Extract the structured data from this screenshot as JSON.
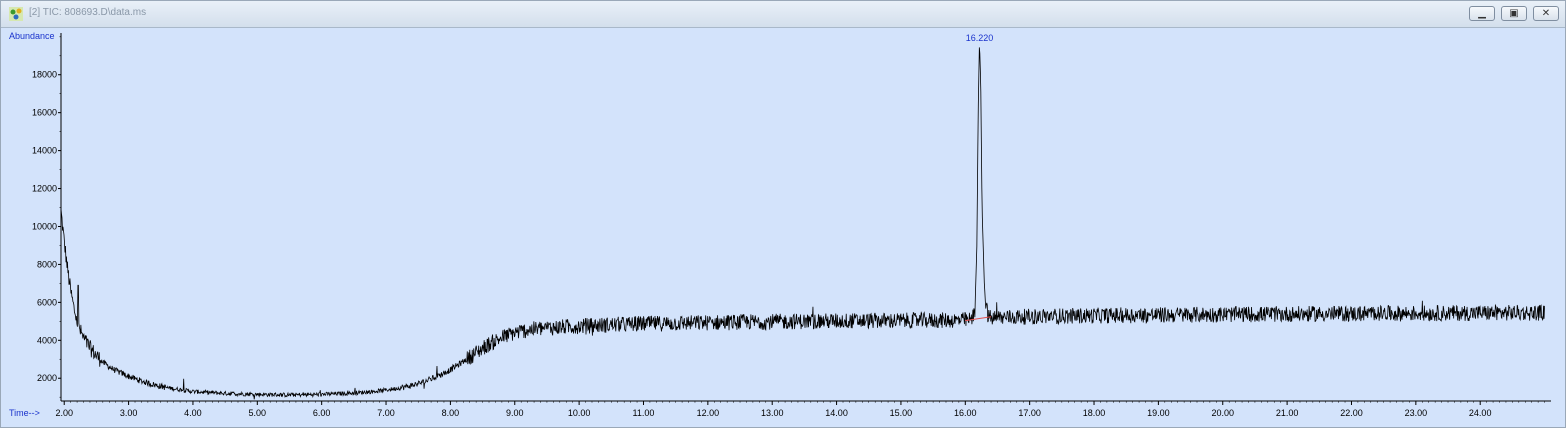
{
  "window": {
    "title": "[2] TIC: 808693.D\\data.ms",
    "icon": "chromatogram-app-icon",
    "buttons": {
      "minimize": "minimize-icon",
      "restore": "restore-icon",
      "close": "close-icon"
    }
  },
  "chart_data": {
    "type": "line",
    "title": "",
    "xlabel": "Time-->",
    "ylabel": "Abundance",
    "xlim": [
      1.95,
      25.1
    ],
    "ylim": [
      800,
      20200
    ],
    "x_ticks": [
      "2.00",
      "3.00",
      "4.00",
      "5.00",
      "6.00",
      "7.00",
      "8.00",
      "9.00",
      "10.00",
      "11.00",
      "12.00",
      "13.00",
      "14.00",
      "15.00",
      "16.00",
      "17.00",
      "18.00",
      "19.00",
      "20.00",
      "21.00",
      "22.00",
      "23.00",
      "24.00"
    ],
    "y_ticks": [
      "2000",
      "4000",
      "6000",
      "8000",
      "10000",
      "12000",
      "14000",
      "16000",
      "18000"
    ],
    "grid": false,
    "background": "#d3e3fb",
    "line_color": "#000000",
    "series": [
      {
        "name": "",
        "x": [
          1.95,
          2.0,
          2.05,
          2.1,
          2.15,
          2.2,
          2.25,
          2.3,
          2.4,
          2.5,
          2.6,
          2.7,
          2.8,
          2.9,
          3.0,
          3.2,
          3.4,
          3.6,
          3.8,
          4.0,
          4.5,
          5.0,
          5.5,
          6.0,
          6.5,
          6.8,
          7.0,
          7.2,
          7.4,
          7.6,
          7.8,
          8.0,
          8.2,
          8.4,
          8.6,
          8.8,
          9.0,
          9.2,
          9.5,
          10.0,
          10.5,
          11.0,
          11.5,
          12.0,
          12.5,
          13.0,
          13.5,
          14.0,
          14.5,
          15.0,
          15.5,
          16.0,
          16.1,
          16.15,
          16.18,
          16.2,
          16.22,
          16.24,
          16.26,
          16.3,
          16.35,
          16.4,
          16.5,
          17.0,
          17.5,
          18.0,
          18.5,
          19.0,
          19.5,
          20.0,
          20.5,
          21.0,
          21.5,
          22.0,
          22.5,
          23.0,
          23.5,
          24.0,
          24.5,
          25.0
        ],
        "y": [
          10800,
          9200,
          7800,
          6600,
          5700,
          5000,
          4500,
          4100,
          3600,
          3200,
          2850,
          2600,
          2400,
          2250,
          2100,
          1850,
          1650,
          1500,
          1400,
          1300,
          1200,
          1150,
          1120,
          1150,
          1220,
          1300,
          1380,
          1480,
          1620,
          1820,
          2100,
          2450,
          2880,
          3350,
          3800,
          4150,
          4400,
          4550,
          4650,
          4750,
          4820,
          4870,
          4900,
          4930,
          4960,
          4980,
          5000,
          5020,
          5030,
          5040,
          5050,
          5060,
          5080,
          5600,
          9000,
          16000,
          19800,
          17500,
          11000,
          6500,
          5300,
          5150,
          5200,
          5250,
          5280,
          5300,
          5320,
          5330,
          5350,
          5360,
          5370,
          5380,
          5390,
          5400,
          5410,
          5420,
          5430,
          5440,
          5450,
          5450
        ],
        "noise": true
      }
    ],
    "annotations": [
      {
        "label": "16.220",
        "x": 16.22,
        "y": 19800
      }
    ],
    "baseline": {
      "x": [
        16.0,
        16.4
      ],
      "y": [
        5040,
        5240
      ],
      "color": "#e05050"
    },
    "spike": {
      "x": 2.22,
      "y": 6900
    }
  }
}
